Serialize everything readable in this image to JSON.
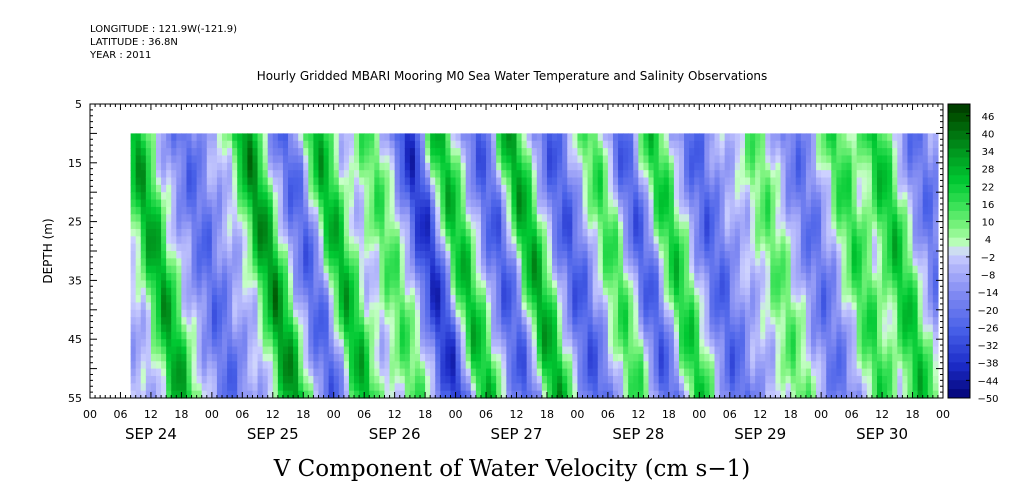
{
  "header": {
    "longitude": "LONGITUDE : 121.9W(-121.9)",
    "latitude": "LATITUDE : 36.8N",
    "year": "YEAR : 2011"
  },
  "chart_data": {
    "type": "heatmap",
    "title": "Hourly Gridded MBARI Mooring M0 Sea Water Temperature and Salinity Observations",
    "xlabel": "V Component of Water Velocity (cm s−1)",
    "ylabel": "DEPTH (m)",
    "ylim": [
      55,
      5
    ],
    "y_ticks": [
      5,
      15,
      25,
      35,
      45,
      55
    ],
    "x_tick_labels": [
      "00",
      "06",
      "12",
      "18",
      "00",
      "06",
      "12",
      "18",
      "00",
      "06",
      "12",
      "18",
      "00",
      "06",
      "12",
      "18",
      "00",
      "06",
      "12",
      "18",
      "00",
      "06",
      "12",
      "18",
      "00",
      "06",
      "12",
      "18",
      "00"
    ],
    "date_labels": [
      "SEP 24",
      "SEP 25",
      "SEP 26",
      "SEP 27",
      "SEP 28",
      "SEP 29",
      "SEP 30"
    ],
    "data_extent": {
      "start": "SEP 24 08:00",
      "end": "SEP 30 23:00",
      "depth_top": 10,
      "depth_bottom": 55
    },
    "colorbar": {
      "labels": [
        "46",
        "40",
        "34",
        "28",
        "22",
        "16",
        "10",
        "4",
        "−2",
        "−8",
        "−14",
        "−20",
        "−26",
        "−32",
        "−38",
        "−44",
        "−50"
      ],
      "min": -50,
      "max": 50,
      "step": 3
    },
    "colors": {
      "positive_max": "#003a00",
      "positive_mid": "#00cc33",
      "positive_low": "#7dff7d",
      "near_zero": "#c6ffc6",
      "negative_low": "#c8c8ff",
      "negative_mid": "#6f78f0",
      "negative_strong": "#2a3ccf",
      "negative_max": "#00006e"
    },
    "bands": [
      {
        "day": 0,
        "hour": 8,
        "sign": 1,
        "strength": 0.9
      },
      {
        "day": 0,
        "hour": 18,
        "sign": -1,
        "strength": 0.4
      },
      {
        "day": 1,
        "hour": 6,
        "sign": 1,
        "strength": 1.0
      },
      {
        "day": 1,
        "hour": 14,
        "sign": -1,
        "strength": 0.45
      },
      {
        "day": 1,
        "hour": 20,
        "sign": 1,
        "strength": 0.85
      },
      {
        "day": 2,
        "hour": 6,
        "sign": 1,
        "strength": 0.5
      },
      {
        "day": 2,
        "hour": 14,
        "sign": -1,
        "strength": 0.75
      },
      {
        "day": 2,
        "hour": 20,
        "sign": 1,
        "strength": 0.8
      },
      {
        "day": 3,
        "hour": 4,
        "sign": -1,
        "strength": 0.5
      },
      {
        "day": 3,
        "hour": 10,
        "sign": 1,
        "strength": 0.9
      },
      {
        "day": 3,
        "hour": 18,
        "sign": -1,
        "strength": 0.5
      },
      {
        "day": 4,
        "hour": 2,
        "sign": 1,
        "strength": 0.55
      },
      {
        "day": 4,
        "hour": 8,
        "sign": -1,
        "strength": 0.5
      },
      {
        "day": 4,
        "hour": 14,
        "sign": 1,
        "strength": 0.7
      },
      {
        "day": 4,
        "hour": 22,
        "sign": -1,
        "strength": 0.45
      },
      {
        "day": 5,
        "hour": 10,
        "sign": 1,
        "strength": 0.45
      },
      {
        "day": 5,
        "hour": 18,
        "sign": -1,
        "strength": 0.35
      },
      {
        "day": 6,
        "hour": 2,
        "sign": 1,
        "strength": 0.6
      },
      {
        "day": 6,
        "hour": 10,
        "sign": 1,
        "strength": 0.75
      },
      {
        "day": 6,
        "hour": 18,
        "sign": -1,
        "strength": 0.35
      }
    ]
  }
}
